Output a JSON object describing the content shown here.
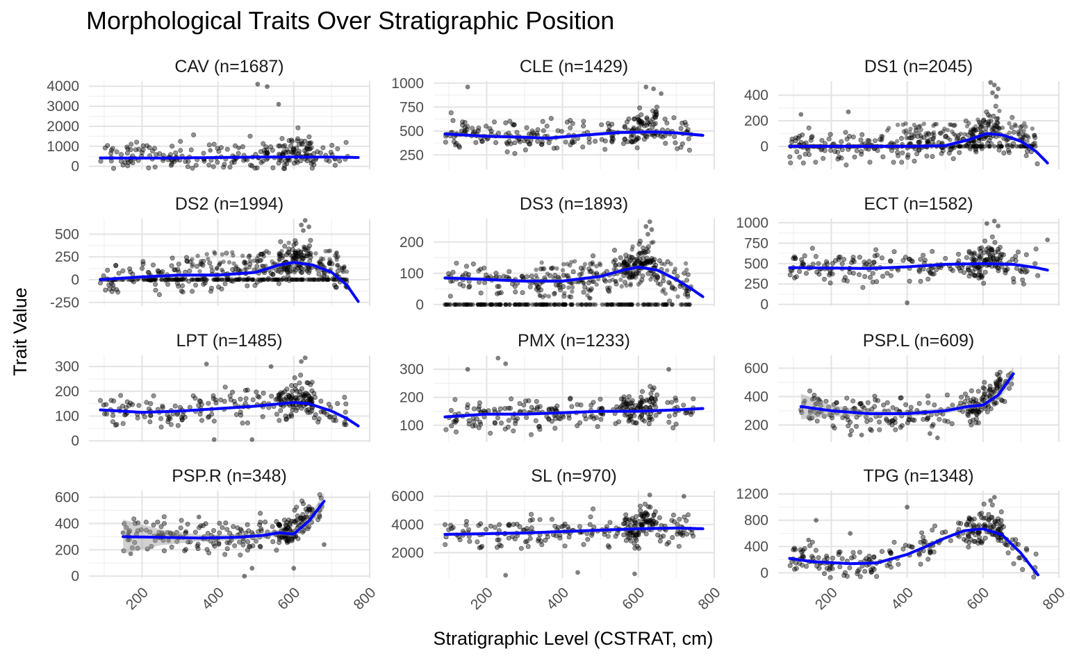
{
  "chart_data": {
    "type": "scatter",
    "title": "Morphological Traits Over Stratigraphic Position",
    "xlabel": "Stratigraphic Level (CSTRAT, cm)",
    "ylabel": "Trait Value",
    "xlim": [
      60,
      800
    ],
    "x_ticks": [
      200,
      400,
      600,
      800
    ],
    "grid": true,
    "panels": [
      {
        "label": "CAV (n=1687)",
        "ylim": [
          -150,
          4250
        ],
        "y_ticks": [
          0,
          1000,
          2000,
          3000,
          4000
        ],
        "y_tick_labels": [
          "0",
          "1000",
          "2000",
          "3000",
          "4000"
        ],
        "trend": [
          [
            90,
            420
          ],
          [
            200,
            410
          ],
          [
            300,
            420
          ],
          [
            400,
            440
          ],
          [
            500,
            460
          ],
          [
            600,
            470
          ],
          [
            700,
            460
          ],
          [
            770,
            440
          ]
        ],
        "band": 60,
        "clusters": [
          [
            90,
            480,
            300,
            90
          ]
        ],
        "noise": 0.2,
        "points": [
          [
            505,
            4100
          ],
          [
            530,
            3980
          ],
          [
            560,
            3100
          ],
          [
            455,
            920
          ],
          [
            600,
            700
          ],
          [
            380,
            800
          ]
        ]
      },
      {
        "label": "CLE (n=1429)",
        "ylim": [
          100,
          1020
        ],
        "y_ticks": [
          250,
          500,
          750,
          1000
        ],
        "y_tick_labels": [
          "250",
          "500",
          "750",
          "1000"
        ],
        "trend": [
          [
            90,
            470
          ],
          [
            200,
            445
          ],
          [
            300,
            435
          ],
          [
            360,
            425
          ],
          [
            450,
            455
          ],
          [
            550,
            485
          ],
          [
            640,
            490
          ],
          [
            700,
            480
          ],
          [
            770,
            455
          ]
        ],
        "band": 20,
        "clusters": [
          [
            90,
            480,
            280,
            180
          ]
        ],
        "noise": 0.0,
        "points": [
          [
            150,
            960
          ],
          [
            620,
            960
          ],
          [
            640,
            940
          ],
          [
            660,
            890
          ]
        ]
      },
      {
        "label": "DS1 (n=2045)",
        "ylim": [
          -180,
          510
        ],
        "y_ticks": [
          0,
          200,
          400
        ],
        "y_tick_labels": [
          "0",
          "200",
          "400"
        ],
        "trend": [
          [
            90,
            0
          ],
          [
            200,
            0
          ],
          [
            300,
            0
          ],
          [
            400,
            0
          ],
          [
            500,
            5
          ],
          [
            560,
            50
          ],
          [
            610,
            100
          ],
          [
            650,
            90
          ],
          [
            700,
            40
          ],
          [
            740,
            -40
          ],
          [
            770,
            -130
          ]
        ],
        "band": 15,
        "clusters": [
          [
            90,
            740,
            0,
            4
          ],
          [
            90,
            740,
            0,
            4
          ]
        ],
        "noise": 0.35,
        "noise_range": [
          0,
          260
        ],
        "points": [
          [
            120,
            250
          ],
          [
            245,
            270
          ],
          [
            620,
            500
          ],
          [
            630,
            480
          ],
          [
            640,
            450
          ],
          [
            625,
            420
          ],
          [
            635,
            390
          ]
        ]
      },
      {
        "label": "DS2 (n=1994)",
        "ylim": [
          -290,
          670
        ],
        "y_ticks": [
          -250,
          0,
          250,
          500
        ],
        "y_tick_labels": [
          "-250",
          "0",
          "250",
          "500"
        ],
        "trend": [
          [
            90,
            0
          ],
          [
            200,
            30
          ],
          [
            300,
            50
          ],
          [
            400,
            50
          ],
          [
            500,
            80
          ],
          [
            560,
            160
          ],
          [
            600,
            190
          ],
          [
            650,
            160
          ],
          [
            700,
            80
          ],
          [
            740,
            -60
          ],
          [
            770,
            -240
          ]
        ],
        "band": 20,
        "clusters": [
          [
            90,
            740,
            0,
            5
          ],
          [
            90,
            740,
            0,
            5
          ]
        ],
        "noise": 0.55,
        "noise_range": [
          80,
          420
        ],
        "points": [
          [
            630,
            650
          ],
          [
            620,
            600
          ],
          [
            640,
            580
          ],
          [
            625,
            540
          ]
        ]
      },
      {
        "label": "DS3 (n=1893)",
        "ylim": [
          -5,
          275
        ],
        "y_ticks": [
          0,
          100,
          200
        ],
        "y_tick_labels": [
          "0",
          "100",
          "200"
        ],
        "trend": [
          [
            90,
            85
          ],
          [
            200,
            80
          ],
          [
            300,
            75
          ],
          [
            400,
            75
          ],
          [
            500,
            90
          ],
          [
            560,
            110
          ],
          [
            600,
            120
          ],
          [
            650,
            110
          ],
          [
            700,
            80
          ],
          [
            740,
            50
          ],
          [
            770,
            25
          ]
        ],
        "band": 6,
        "clusters": [
          [
            90,
            740,
            0,
            1
          ],
          [
            90,
            740,
            0,
            1
          ]
        ],
        "noise": 0.6,
        "noise_range": [
          20,
          190
        ],
        "points": [
          [
            630,
            265
          ],
          [
            620,
            250
          ],
          [
            635,
            240
          ],
          [
            625,
            225
          ]
        ]
      },
      {
        "label": "ECT (n=1582)",
        "ylim": [
          -20,
          1050
        ],
        "y_ticks": [
          0,
          250,
          500,
          750,
          1000
        ],
        "y_tick_labels": [
          "0",
          "250",
          "500",
          "750",
          "1000"
        ],
        "trend": [
          [
            90,
            450
          ],
          [
            200,
            445
          ],
          [
            300,
            440
          ],
          [
            400,
            460
          ],
          [
            500,
            490
          ],
          [
            600,
            500
          ],
          [
            680,
            490
          ],
          [
            740,
            450
          ],
          [
            770,
            420
          ]
        ],
        "band": 18,
        "clusters": [
          [
            90,
            480,
            250,
            220
          ]
        ],
        "noise": 0.0,
        "points": [
          [
            630,
            1020
          ],
          [
            610,
            990
          ],
          [
            640,
            960
          ],
          [
            770,
            790
          ],
          [
            400,
            20
          ]
        ]
      },
      {
        "label": "LPT (n=1485)",
        "ylim": [
          -5,
          345
        ],
        "y_ticks": [
          0,
          100,
          200,
          300
        ],
        "y_tick_labels": [
          "0",
          "100",
          "200",
          "300"
        ],
        "trend": [
          [
            90,
            125
          ],
          [
            200,
            115
          ],
          [
            300,
            120
          ],
          [
            400,
            130
          ],
          [
            500,
            140
          ],
          [
            600,
            155
          ],
          [
            640,
            150
          ],
          [
            700,
            120
          ],
          [
            740,
            90
          ],
          [
            770,
            60
          ]
        ],
        "band": 6,
        "clusters": [
          [
            90,
            480,
            120,
            45
          ]
        ],
        "noise": 0.0,
        "points": [
          [
            630,
            335
          ],
          [
            620,
            320
          ],
          [
            370,
            310
          ],
          [
            540,
            300
          ],
          [
            390,
            5
          ],
          [
            490,
            5
          ]
        ]
      },
      {
        "label": "PMX (n=1233)",
        "ylim": [
          40,
          350
        ],
        "y_ticks": [
          100,
          200,
          300
        ],
        "y_tick_labels": [
          "100",
          "200",
          "300"
        ],
        "trend": [
          [
            90,
            130
          ],
          [
            200,
            140
          ],
          [
            300,
            140
          ],
          [
            400,
            145
          ],
          [
            500,
            150
          ],
          [
            600,
            150
          ],
          [
            700,
            155
          ],
          [
            770,
            160
          ]
        ],
        "band": 6,
        "clusters": [
          [
            90,
            480,
            145,
            55
          ]
        ],
        "noise": 0.0,
        "points": [
          [
            230,
            340
          ],
          [
            250,
            320
          ],
          [
            680,
            300
          ],
          [
            150,
            300
          ]
        ]
      },
      {
        "label": "PSP.L (n=609)",
        "ylim": [
          80,
          690
        ],
        "y_ticks": [
          200,
          400,
          600
        ],
        "y_tick_labels": [
          "200",
          "400",
          "600"
        ],
        "trend": [
          [
            120,
            330
          ],
          [
            200,
            300
          ],
          [
            300,
            280
          ],
          [
            400,
            280
          ],
          [
            500,
            300
          ],
          [
            560,
            330
          ],
          [
            600,
            340
          ],
          [
            640,
            410
          ],
          [
            680,
            560
          ]
        ],
        "band": 15,
        "band_wide": [
          [
            120,
            90
          ],
          [
            200,
            40
          ],
          [
            300,
            20
          ],
          [
            600,
            20
          ],
          [
            680,
            50
          ]
        ],
        "clusters": [
          [
            400,
            680,
            340,
            90
          ]
        ],
        "noise": 0.0,
        "points": [
          [
            130,
            370
          ],
          [
            150,
            380
          ],
          [
            250,
            130
          ],
          [
            280,
            130
          ],
          [
            340,
            300
          ],
          [
            460,
            140
          ],
          [
            480,
            110
          ]
        ]
      },
      {
        "label": "PSP.R (n=348)",
        "ylim": [
          -15,
          650
        ],
        "y_ticks": [
          0,
          200,
          400,
          600
        ],
        "y_tick_labels": [
          "0",
          "200",
          "400",
          "600"
        ],
        "trend": [
          [
            150,
            300
          ],
          [
            250,
            295
          ],
          [
            350,
            290
          ],
          [
            450,
            295
          ],
          [
            520,
            310
          ],
          [
            560,
            330
          ],
          [
            600,
            320
          ],
          [
            640,
            420
          ],
          [
            680,
            570
          ]
        ],
        "band": 15,
        "band_wide": [
          [
            150,
            130
          ],
          [
            250,
            60
          ],
          [
            350,
            25
          ],
          [
            600,
            20
          ],
          [
            680,
            60
          ]
        ],
        "clusters": [
          [
            420,
            680,
            330,
            90
          ]
        ],
        "noise": 0.0,
        "points": [
          [
            150,
            330
          ],
          [
            170,
            170
          ],
          [
            270,
            270
          ],
          [
            350,
            450
          ],
          [
            360,
            290
          ],
          [
            470,
            0
          ],
          [
            490,
            60
          ],
          [
            600,
            60
          ],
          [
            680,
            240
          ]
        ]
      },
      {
        "label": "SL (n=970)",
        "ylim": [
          200,
          6400
        ],
        "y_ticks": [
          2000,
          4000,
          6000
        ],
        "y_tick_labels": [
          "2000",
          "4000",
          "6000"
        ],
        "trend": [
          [
            90,
            3300
          ],
          [
            200,
            3350
          ],
          [
            300,
            3400
          ],
          [
            400,
            3500
          ],
          [
            500,
            3600
          ],
          [
            600,
            3700
          ],
          [
            700,
            3750
          ],
          [
            770,
            3700
          ]
        ],
        "band": 120,
        "clusters": [
          [
            90,
            480,
            3500,
            900
          ]
        ],
        "noise": 0.0,
        "points": [
          [
            250,
            400
          ],
          [
            440,
            600
          ],
          [
            590,
            500
          ],
          [
            630,
            6100
          ],
          [
            720,
            6000
          ]
        ]
      },
      {
        "label": "TPG (n=1348)",
        "ylim": [
          -80,
          1250
        ],
        "y_ticks": [
          0,
          400,
          800,
          1200
        ],
        "y_tick_labels": [
          "0",
          "400",
          "800",
          "1200"
        ],
        "trend": [
          [
            90,
            220
          ],
          [
            150,
            170
          ],
          [
            250,
            140
          ],
          [
            320,
            150
          ],
          [
            400,
            280
          ],
          [
            450,
            400
          ],
          [
            500,
            530
          ],
          [
            550,
            640
          ],
          [
            600,
            670
          ],
          [
            650,
            580
          ],
          [
            700,
            300
          ],
          [
            740,
            0
          ],
          [
            745,
            -30
          ]
        ],
        "band": 25,
        "clusters": [
          [
            90,
            330,
            170,
            60
          ]
        ],
        "noise": 0.0,
        "points": [
          [
            160,
            800
          ],
          [
            250,
            600
          ],
          [
            140,
            500
          ],
          [
            630,
            1150
          ],
          [
            620,
            1100
          ],
          [
            400,
            1000
          ]
        ]
      }
    ]
  }
}
